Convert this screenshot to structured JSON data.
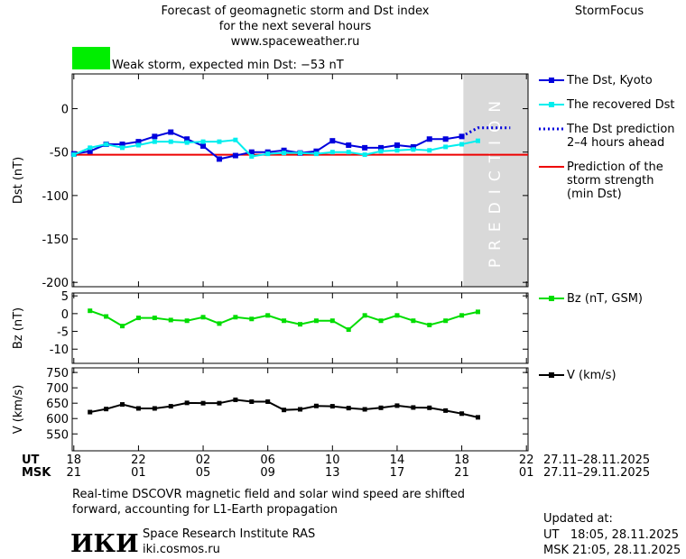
{
  "header": {
    "title": [
      "Forecast of geomagnetic storm and Dst index",
      "for the next several hours",
      "www.spaceweather.ru"
    ],
    "brand": "StormFocus",
    "storm_label": "Weak storm, expected min Dst: −53 nT",
    "storm_color": "#00ee00"
  },
  "x_axis": {
    "xlim": [
      -0.1,
      28.1
    ],
    "xticks": [
      {
        "value": 0,
        "label": "18"
      },
      {
        "value": 4,
        "label": "22"
      },
      {
        "value": 8,
        "label": "02"
      },
      {
        "value": 12,
        "label": "06"
      },
      {
        "value": 16,
        "label": "10"
      },
      {
        "value": 20,
        "label": "14"
      },
      {
        "value": 24,
        "label": "18"
      },
      {
        "value": 28,
        "label": "22"
      }
    ],
    "msk_ticks": [
      "21",
      "01",
      "05",
      "09",
      "13",
      "17",
      "21",
      "01"
    ],
    "ut_label": "UT",
    "msk_label": "MSK",
    "ut_range": "27.11–28.11.2025",
    "msk_range": "27.11–29.11.2025"
  },
  "chart_data": [
    {
      "type": "line",
      "ylabel": "Dst (nT)",
      "ylim": [
        -205,
        40
      ],
      "yticks": [
        0,
        -50,
        -100,
        -150,
        -200
      ],
      "forecast_band": {
        "xlim": [
          24.1,
          28.1
        ],
        "label": "PREDICTION",
        "color": "#d9d9d9"
      },
      "series": [
        {
          "name": "The Dst, Kyoto",
          "color": "#0000dd",
          "marker": "square",
          "x": [
            0,
            1,
            2,
            3,
            4,
            5,
            6,
            7,
            8,
            9,
            10,
            11,
            12,
            13,
            14,
            15,
            16,
            17,
            18,
            19,
            20,
            21,
            22,
            23,
            24
          ],
          "values": [
            -52,
            -49,
            -41,
            -41,
            -38,
            -32,
            -27,
            -35,
            -43,
            -58,
            -54,
            -50,
            -50,
            -48,
            -51,
            -49,
            -37,
            -42,
            -45,
            -45,
            -42,
            -44,
            -35,
            -35,
            -32
          ]
        },
        {
          "name": "The recovered Dst",
          "color": "#00eeee",
          "marker": "small",
          "x": [
            0,
            1,
            2,
            3,
            4,
            5,
            6,
            7,
            8,
            9,
            10,
            11,
            12,
            13,
            14,
            15,
            16,
            17,
            18,
            19,
            20,
            21,
            22,
            23,
            24,
            25
          ],
          "values": [
            -53,
            -45,
            -41,
            -45,
            -42,
            -38,
            -38,
            -39,
            -38,
            -38,
            -36,
            -55,
            -52,
            -51,
            -51,
            -52,
            -50,
            -50,
            -53,
            -49,
            -48,
            -47,
            -48,
            -44,
            -41,
            -37
          ]
        },
        {
          "name": [
            "The Dst prediction",
            "2–4 hours ahead"
          ],
          "color": "#0000dd",
          "marker": "none",
          "dash": true,
          "x": [
            24,
            25,
            27
          ],
          "values": [
            -32,
            -22,
            -22
          ]
        }
      ],
      "hlines": [
        {
          "name": [
            "Prediction of the",
            "storm strength",
            "(min Dst)"
          ],
          "value": -53,
          "color": "#ee0000"
        }
      ]
    },
    {
      "type": "line",
      "ylabel": "Bz (nT)",
      "ylim": [
        -14,
        5.8
      ],
      "yticks": [
        5,
        0,
        -5,
        -10
      ],
      "series": [
        {
          "name": "Bz (nT, GSM)",
          "color": "#00dd00",
          "marker": "small",
          "x": [
            1,
            2,
            3,
            4,
            5,
            6,
            7,
            8,
            9,
            10,
            11,
            12,
            13,
            14,
            15,
            16,
            17,
            18,
            19,
            20,
            21,
            22,
            23,
            24,
            25
          ],
          "values": [
            0.8,
            -0.8,
            -3.5,
            -1.2,
            -1.2,
            -1.8,
            -2,
            -1,
            -2.8,
            -1,
            -1.5,
            -0.5,
            -2,
            -3,
            -2,
            -2,
            -4.5,
            -0.5,
            -2,
            -0.5,
            -2,
            -3.2,
            -2,
            -0.5,
            0.5
          ]
        }
      ]
    },
    {
      "type": "line",
      "ylabel": "V (km/s)",
      "ylim": [
        495,
        765
      ],
      "yticks": [
        750,
        700,
        650,
        600,
        550
      ],
      "series": [
        {
          "name": "V (km/s)",
          "color": "#000000",
          "marker": "small",
          "x": [
            1,
            2,
            3,
            4,
            5,
            6,
            7,
            8,
            9,
            10,
            11,
            12,
            13,
            14,
            15,
            16,
            17,
            18,
            19,
            20,
            21,
            22,
            23,
            24,
            25
          ],
          "values": [
            621,
            631,
            646,
            633,
            633,
            640,
            651,
            650,
            650,
            661,
            655,
            655,
            628,
            630,
            641,
            640,
            634,
            630,
            635,
            642,
            636,
            635,
            626,
            616,
            604
          ]
        }
      ]
    }
  ],
  "footer": {
    "note": [
      "Real-time DSCOVR magnetic field and solar wind speed are shifted",
      "forward, accounting for L1-Earth propagation"
    ],
    "logo": "ИКИ",
    "institute": "Space Research Institute RAS",
    "url": "iki.cosmos.ru",
    "updated_title": "Updated at:",
    "updated_ut": "UT   18:05, 28.11.2025",
    "updated_msk": "MSK 21:05, 28.11.2025"
  }
}
